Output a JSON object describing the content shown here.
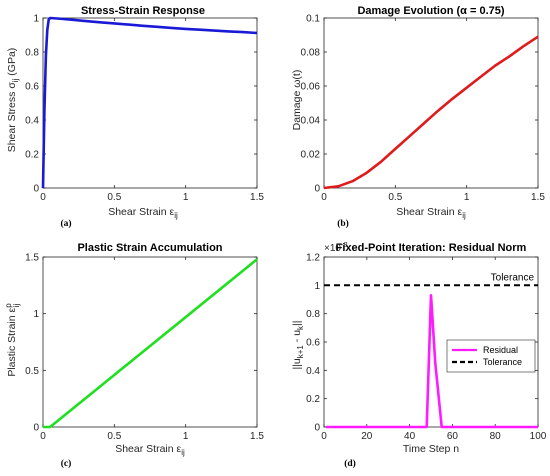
{
  "chart_data": [
    {
      "type": "line",
      "panel_label": "(a)",
      "title": "Stress-Strain Response",
      "xlabel": "Shear Strain ε_ij",
      "ylabel": "Shear Stress σ_ij (GPa)",
      "xlim": [
        0,
        1.5
      ],
      "ylim": [
        0,
        1
      ],
      "xticks": [
        "0",
        "0.5",
        "1",
        "1.5"
      ],
      "yticks": [
        "0",
        "0.2",
        "0.4",
        "0.6",
        "0.8",
        "1"
      ],
      "grid": false,
      "series": [
        {
          "color": "#1a1ad6",
          "x": [
            0,
            0.01,
            0.02,
            0.03,
            0.04,
            0.05,
            0.1,
            0.2,
            0.3,
            0.4,
            0.5,
            0.6,
            0.7,
            0.8,
            0.9,
            1.0,
            1.1,
            1.2,
            1.3,
            1.4,
            1.5
          ],
          "y": [
            0,
            0.45,
            0.78,
            0.93,
            0.99,
            1.0,
            0.997,
            0.99,
            0.982,
            0.975,
            0.968,
            0.961,
            0.954,
            0.948,
            0.942,
            0.936,
            0.931,
            0.926,
            0.921,
            0.917,
            0.912
          ]
        }
      ]
    },
    {
      "type": "line",
      "panel_label": "(b)",
      "title": "Damage Evolution (α = 0.75)",
      "xlabel": "Shear Strain ε_ij",
      "ylabel": "Damage ω(t)",
      "xlim": [
        0,
        1.5
      ],
      "ylim": [
        0,
        0.1
      ],
      "xticks": [
        "0",
        "0.5",
        "1",
        "1.5"
      ],
      "yticks": [
        "0",
        "0.02",
        "0.04",
        "0.06",
        "0.08",
        "0.1"
      ],
      "grid": false,
      "series": [
        {
          "color": "#e01b1b",
          "x": [
            0,
            0.1,
            0.2,
            0.3,
            0.4,
            0.5,
            0.6,
            0.7,
            0.8,
            0.9,
            1.0,
            1.1,
            1.2,
            1.3,
            1.4,
            1.5
          ],
          "y": [
            0,
            0.001,
            0.004,
            0.009,
            0.0155,
            0.023,
            0.0305,
            0.038,
            0.0455,
            0.0525,
            0.059,
            0.0655,
            0.072,
            0.0775,
            0.0835,
            0.089
          ]
        }
      ]
    },
    {
      "type": "line",
      "panel_label": "(c)",
      "title": "Plastic Strain Accumulation",
      "xlabel": "Shear Strain ε_ij",
      "ylabel": "Plastic Strain ε^p_ij",
      "xlim": [
        0,
        1.5
      ],
      "ylim": [
        0,
        1.5
      ],
      "xticks": [
        "0",
        "0.5",
        "1",
        "1.5"
      ],
      "yticks": [
        "0",
        "0.5",
        "1",
        "1.5"
      ],
      "grid": false,
      "series": [
        {
          "color": "#1fe01f",
          "x": [
            0,
            0.05,
            1.5
          ],
          "y": [
            0,
            0,
            1.48
          ]
        }
      ]
    },
    {
      "type": "line",
      "panel_label": "(d)",
      "title": "Fixed-Point Iteration: Residual Norm",
      "xlabel": "Time Step n",
      "ylabel": "||u_k+1 - u_k||",
      "y_exponent": "×10",
      "y_exponent_power": "-8",
      "xlim": [
        0,
        100
      ],
      "ylim": [
        0,
        1.2
      ],
      "xticks": [
        "0",
        "20",
        "40",
        "60",
        "80",
        "100"
      ],
      "yticks": [
        "0",
        "0.2",
        "0.4",
        "0.6",
        "0.8",
        "1",
        "1.2"
      ],
      "grid": false,
      "legend_position": "center-right",
      "annotation": "Tolerance",
      "series": [
        {
          "name": "Residual",
          "color": "#ff1aff",
          "style": "solid",
          "x": [
            1,
            48,
            50,
            52,
            55,
            100
          ],
          "y": [
            0,
            0,
            0.93,
            0.45,
            0,
            0
          ]
        },
        {
          "name": "Tolerance",
          "color": "#000000",
          "style": "dashed",
          "x": [
            0,
            100
          ],
          "y": [
            1,
            1
          ]
        }
      ]
    }
  ]
}
